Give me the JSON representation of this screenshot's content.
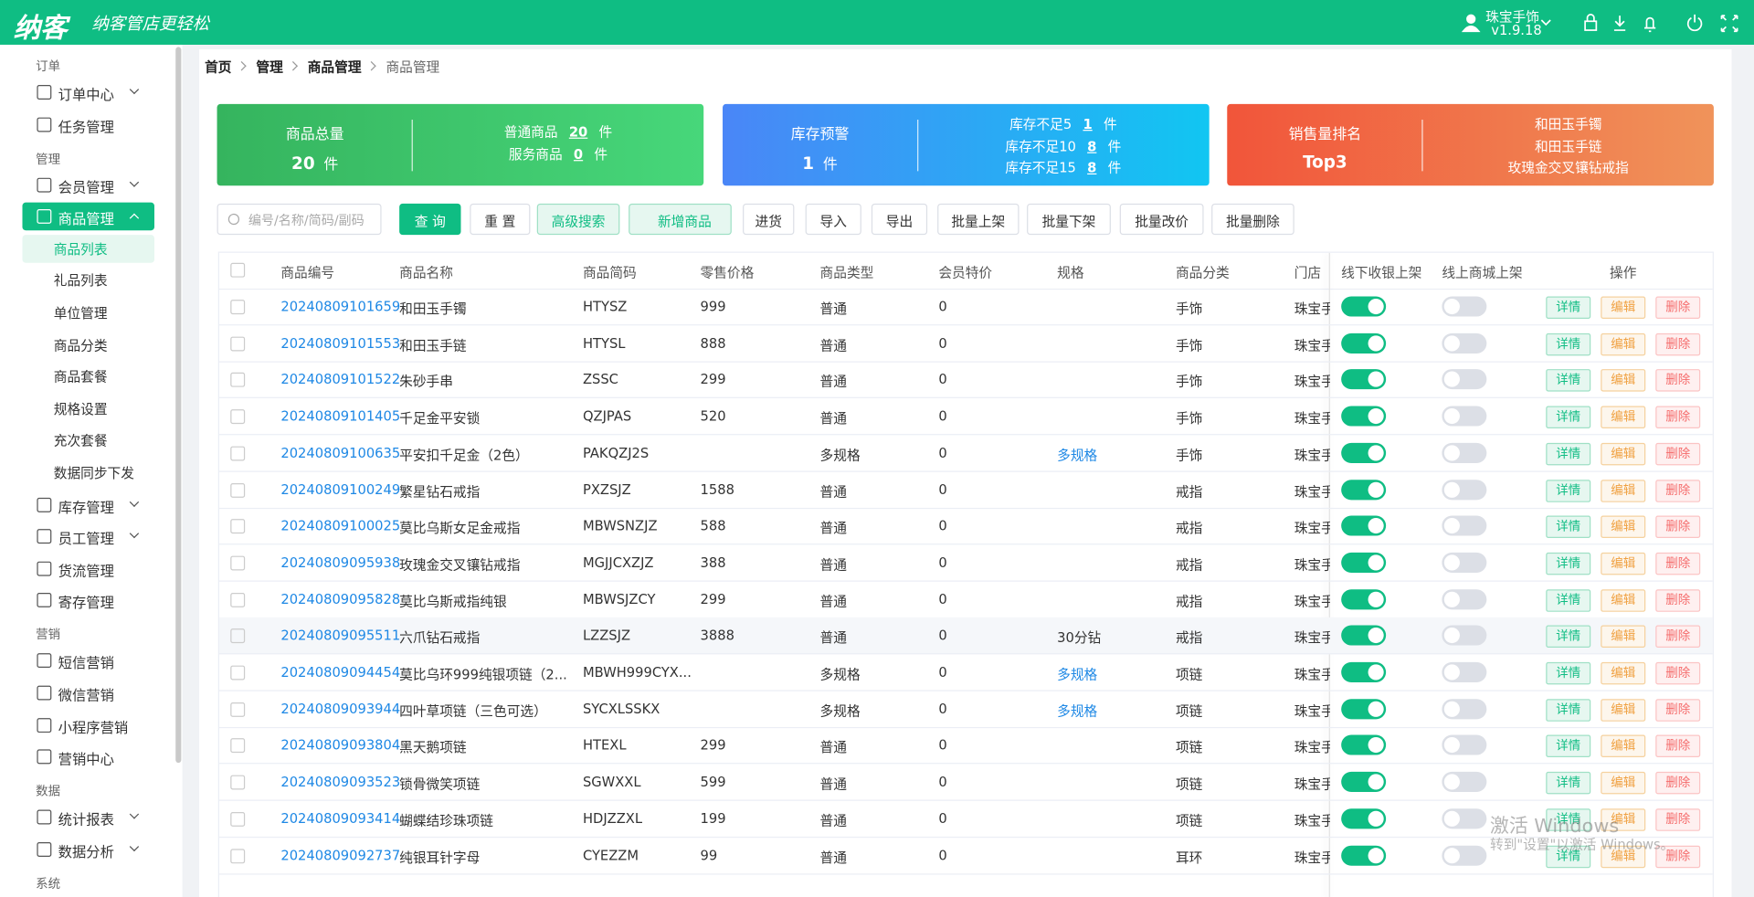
{
  "header": {
    "logo": "纳客",
    "slogan": "纳客管店更轻松",
    "user": "珠宝手饰",
    "version": "v1.9.18"
  },
  "sidebar": {
    "groups": [
      {
        "label": "订单",
        "items": [
          {
            "label": "订单中心",
            "arrow": true
          },
          {
            "label": "任务管理"
          }
        ]
      },
      {
        "label": "管理",
        "items": [
          {
            "label": "会员管理",
            "arrow": true
          },
          {
            "label": "商品管理",
            "arrow": true,
            "open": true,
            "children": [
              "商品列表",
              "礼品列表",
              "单位管理",
              "商品分类",
              "商品套餐",
              "规格设置",
              "充次套餐",
              "数据同步下发"
            ]
          },
          {
            "label": "库存管理",
            "arrow": true
          },
          {
            "label": "员工管理",
            "arrow": true
          },
          {
            "label": "货流管理"
          },
          {
            "label": "寄存管理"
          }
        ]
      },
      {
        "label": "营销",
        "items": [
          {
            "label": "短信营销"
          },
          {
            "label": "微信营销"
          },
          {
            "label": "小程序营销"
          },
          {
            "label": "营销中心"
          }
        ]
      },
      {
        "label": "数据",
        "items": [
          {
            "label": "统计报表",
            "arrow": true
          },
          {
            "label": "数据分析",
            "arrow": true
          }
        ]
      },
      {
        "label": "系统",
        "items": []
      }
    ]
  },
  "breadcrumb": [
    "首页",
    "管理",
    "商品管理",
    "商品管理"
  ],
  "cards": [
    {
      "title": "商品总量",
      "value": 20,
      "unit": "件",
      "details": [
        {
          "label": "普通商品",
          "value": 20,
          "unit": "件"
        },
        {
          "label": "服务商品",
          "value": 0,
          "unit": "件"
        }
      ]
    },
    {
      "title": "库存预警",
      "value": 1,
      "unit": "件",
      "details": [
        {
          "label": "库存不足5",
          "value": 1,
          "unit": "件"
        },
        {
          "label": "库存不足10",
          "value": 8,
          "unit": "件"
        },
        {
          "label": "库存不足15",
          "value": 8,
          "unit": "件"
        }
      ]
    },
    {
      "title": "销售量排名",
      "value": "Top3",
      "details": [
        {
          "label": "和田玉手镯"
        },
        {
          "label": "和田玉手链"
        },
        {
          "label": "玫瑰金交叉镶钻戒指"
        }
      ]
    }
  ],
  "toolbar": {
    "search_placeholder": "编号/名称/简码/副码",
    "buttons": [
      "查 询",
      "重 置",
      "高级搜索",
      "新增商品",
      "进货",
      "导入",
      "导出",
      "批量上架",
      "批量下架",
      "批量改价",
      "批量删除"
    ]
  },
  "table": {
    "columns": [
      "商品编号",
      "商品名称",
      "商品简码",
      "零售价格",
      "商品类型",
      "会员特价",
      "规格",
      "商品分类",
      "门店",
      "线下收银上架",
      "线上商城上架",
      "操作"
    ],
    "actions": [
      "详情",
      "编辑",
      "删除"
    ],
    "rows": [
      {
        "code": "20240809101659",
        "name": "和田玉手镯",
        "abbr": "HTYSZ",
        "price": 999,
        "type": "普通",
        "member_price": 0,
        "spec": null,
        "category": "手饰",
        "store": "珠宝手饰",
        "offline": true,
        "online": false
      },
      {
        "code": "20240809101553",
        "name": "和田玉手链",
        "abbr": "HTYSL",
        "price": 888,
        "type": "普通",
        "member_price": 0,
        "spec": null,
        "category": "手饰",
        "store": "珠宝手饰",
        "offline": true,
        "online": false
      },
      {
        "code": "20240809101522",
        "name": "朱砂手串",
        "abbr": "ZSSC",
        "price": 299,
        "type": "普通",
        "member_price": 0,
        "spec": null,
        "category": "手饰",
        "store": "珠宝手饰",
        "offline": true,
        "online": false
      },
      {
        "code": "20240809101405",
        "name": "千足金平安锁",
        "abbr": "QZJPAS",
        "price": 520,
        "type": "普通",
        "member_price": 0,
        "spec": null,
        "category": "手饰",
        "store": "珠宝手饰",
        "offline": true,
        "online": false
      },
      {
        "code": "20240809100635",
        "name": "平安扣千足金（2色）",
        "abbr": "PAKQZJ2S",
        "price": null,
        "type": "多规格",
        "member_price": 0,
        "spec": "多规格",
        "category": "手饰",
        "store": "珠宝手饰",
        "offline": true,
        "online": false
      },
      {
        "code": "20240809100249",
        "name": "繁星钻石戒指",
        "abbr": "PXZSJZ",
        "price": 1588,
        "type": "普通",
        "member_price": 0,
        "spec": null,
        "category": "戒指",
        "store": "珠宝手饰",
        "offline": true,
        "online": false
      },
      {
        "code": "20240809100025",
        "name": "莫比乌斯女足金戒指",
        "abbr": "MBWSNZJZ",
        "price": 588,
        "type": "普通",
        "member_price": 0,
        "spec": null,
        "category": "戒指",
        "store": "珠宝手饰",
        "offline": true,
        "online": false
      },
      {
        "code": "20240809095938",
        "name": "玫瑰金交叉镶钻戒指",
        "abbr": "MGJJCXZJZ",
        "price": 388,
        "type": "普通",
        "member_price": 0,
        "spec": null,
        "category": "戒指",
        "store": "珠宝手饰",
        "offline": true,
        "online": false
      },
      {
        "code": "20240809095828",
        "name": "莫比乌斯戒指纯银",
        "abbr": "MBWSJZCY",
        "price": 299,
        "type": "普通",
        "member_price": 0,
        "spec": null,
        "category": "戒指",
        "store": "珠宝手饰",
        "offline": true,
        "online": false
      },
      {
        "code": "20240809095511",
        "name": "六爪钻石戒指",
        "abbr": "LZZSJZ",
        "price": 3888,
        "type": "普通",
        "member_price": 0,
        "spec": "30分钻",
        "category": "戒指",
        "store": "珠宝手饰",
        "offline": true,
        "online": false
      },
      {
        "code": "20240809094454",
        "name": "莫比乌环999纯银项链（2...",
        "abbr": "MBWH999CYX...",
        "price": null,
        "type": "多规格",
        "member_price": 0,
        "spec": "多规格",
        "category": "项链",
        "store": "珠宝手饰",
        "offline": true,
        "online": false
      },
      {
        "code": "20240809093944",
        "name": "四叶草项链（三色可选）",
        "abbr": "SYCXLSSKX",
        "price": null,
        "type": "多规格",
        "member_price": 0,
        "spec": "多规格",
        "category": "项链",
        "store": "珠宝手饰",
        "offline": true,
        "online": false
      },
      {
        "code": "20240809093804",
        "name": "黑天鹅项链",
        "abbr": "HTEXL",
        "price": 299,
        "type": "普通",
        "member_price": 0,
        "spec": null,
        "category": "项链",
        "store": "珠宝手饰",
        "offline": true,
        "online": false
      },
      {
        "code": "20240809093523",
        "name": "锁骨微笑项链",
        "abbr": "SGWXXL",
        "price": 599,
        "type": "普通",
        "member_price": 0,
        "spec": null,
        "category": "项链",
        "store": "珠宝手饰",
        "offline": true,
        "online": false
      },
      {
        "code": "20240809093414",
        "name": "蝴蝶结珍珠项链",
        "abbr": "HDJZZXL",
        "price": 199,
        "type": "普通",
        "member_price": 0,
        "spec": null,
        "category": "项链",
        "store": "珠宝手饰",
        "offline": true,
        "online": false
      },
      {
        "code": "20240809092737",
        "name": "纯银耳针字母",
        "abbr": "CYEZZM",
        "price": 99,
        "type": "普通",
        "member_price": 0,
        "spec": null,
        "category": "耳环",
        "store": "珠宝手饰",
        "offline": true,
        "online": false
      }
    ]
  },
  "watermark": {
    "title": "激活 Windows",
    "text": "转到\"设置\"以激活 Windows。"
  }
}
